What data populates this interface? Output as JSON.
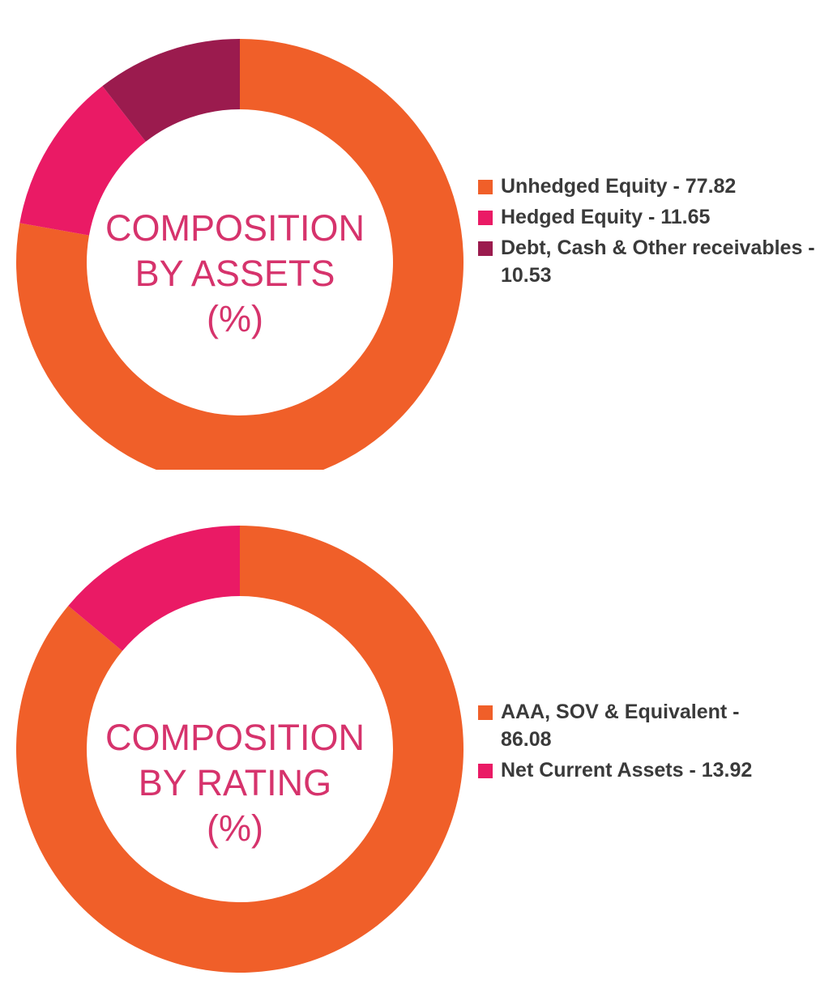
{
  "chart_data": [
    {
      "type": "pie",
      "title_lines": [
        "COMPOSITION",
        "BY ASSETS",
        "(%)"
      ],
      "series": [
        {
          "name": "Unhedged Equity",
          "value": 77.82,
          "color": "#f05f29"
        },
        {
          "name": "Hedged Equity",
          "value": 11.65,
          "color": "#ea1a65"
        },
        {
          "name": "Debt, Cash & Other receivables",
          "value": 10.53,
          "color": "#9b1b4e"
        }
      ],
      "legend_labels": [
        "Unhedged Equity - 77.82",
        "Hedged Equity - 11.65",
        "Debt, Cash & Other receivables - 10.53"
      ],
      "legend_position": "right"
    },
    {
      "type": "pie",
      "title_lines": [
        "COMPOSITION",
        "BY RATING",
        "(%)"
      ],
      "series": [
        {
          "name": "AAA, SOV & Equivalent",
          "value": 86.08,
          "color": "#f05f29"
        },
        {
          "name": "Net Current Assets",
          "value": 13.92,
          "color": "#ea1a65"
        }
      ],
      "legend_labels": [
        "AAA, SOV & Equivalent - 86.08",
        "Net Current Assets - 13.92"
      ],
      "legend_position": "right"
    }
  ]
}
